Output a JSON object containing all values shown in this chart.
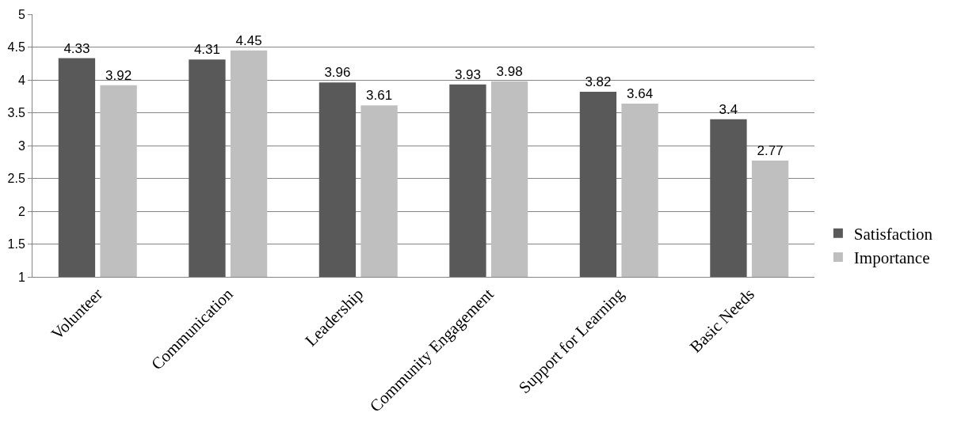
{
  "chart_data": {
    "type": "bar",
    "categories": [
      "Volunteer",
      "Communication",
      "Leadership",
      "Community Engagement",
      "Support for Learning",
      "Basic Needs"
    ],
    "series": [
      {
        "name": "Satisfaction",
        "color": "#595959",
        "values": [
          4.33,
          4.31,
          3.96,
          3.93,
          3.82,
          3.4
        ]
      },
      {
        "name": "Importance",
        "color": "#bfbfbf",
        "values": [
          3.92,
          4.45,
          3.61,
          3.98,
          3.64,
          2.77
        ]
      }
    ],
    "ylim": [
      1,
      5
    ],
    "yticks": [
      1,
      1.5,
      2,
      2.5,
      3,
      3.5,
      4,
      4.5,
      5
    ],
    "grid": "y",
    "legend": "right",
    "data_labels": true
  }
}
